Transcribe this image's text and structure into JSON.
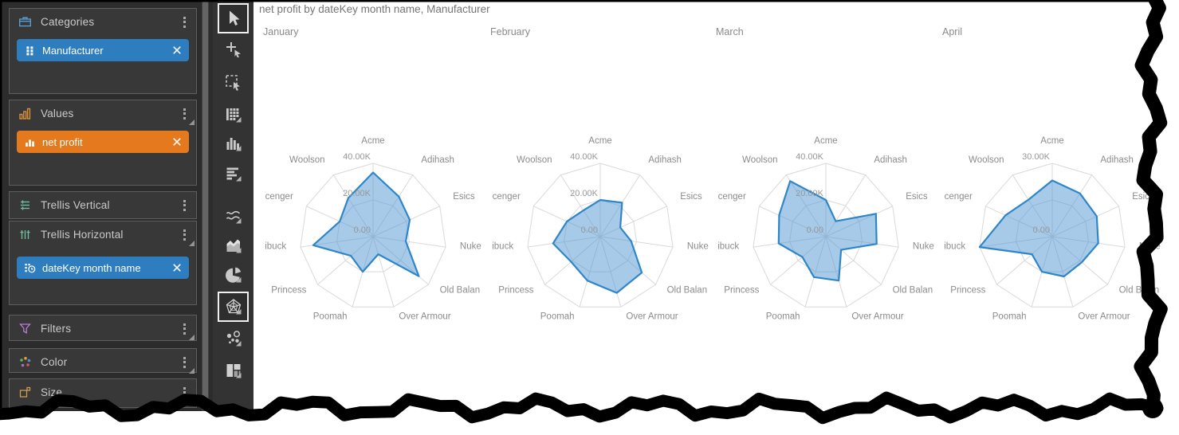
{
  "theme": {
    "accent_blue": "#2d7dbf",
    "accent_orange": "#e5791e",
    "radar_fill": "rgba(77,149,209,0.5)",
    "radar_stroke": "#2f86c7",
    "grid_line": "#d9d9d9",
    "axis_label_color": "#8c8c8c",
    "tick_label_color": "#979797",
    "title_color": "#757575",
    "month_color": "#8a8a8a"
  },
  "sidebar": {
    "panels": [
      {
        "name": "categories",
        "label": "Categories",
        "icon": "briefcase-icon",
        "chips": [
          {
            "label": "Manufacturer",
            "icon": "grid-icon",
            "color": "blue"
          }
        ]
      },
      {
        "name": "values",
        "label": "Values",
        "icon": "bar-chart-icon",
        "corner": true,
        "chips": [
          {
            "label": "net profit",
            "icon": "bars-icon",
            "color": "orange"
          }
        ]
      },
      {
        "name": "trellis-vertical",
        "label": "Trellis Vertical",
        "icon": "rows-icon",
        "chips": []
      },
      {
        "name": "trellis-horizontal",
        "label": "Trellis Horizontal",
        "icon": "columns-icon",
        "corner": true,
        "chips": [
          {
            "label": "dateKey month name",
            "icon": "clock-icon",
            "color": "blue"
          }
        ]
      },
      {
        "name": "filters",
        "label": "Filters",
        "icon": "funnel-icon",
        "corner": true,
        "chips": []
      },
      {
        "name": "color",
        "label": "Color",
        "icon": "color-dots-icon",
        "corner": true,
        "chips": []
      },
      {
        "name": "size",
        "label": "Size",
        "icon": "size-icon",
        "corner": true,
        "chips": []
      }
    ]
  },
  "toolbar": {
    "tools": [
      {
        "name": "pointer-tool",
        "selected": true
      },
      {
        "name": "add-element-tool"
      },
      {
        "name": "select-region-tool"
      },
      {
        "name": "table-visual-tool"
      },
      {
        "name": "bar-chart-visual-tool"
      },
      {
        "name": "hbar-chart-visual-tool"
      },
      {
        "name": "line-chart-visual-tool"
      },
      {
        "name": "area-chart-visual-tool"
      },
      {
        "name": "pie-chart-visual-tool"
      },
      {
        "name": "radar-chart-visual-tool",
        "selected": true
      },
      {
        "name": "scatter-chart-visual-tool"
      },
      {
        "name": "treemap-visual-tool"
      }
    ]
  },
  "main": {
    "title": "net profit by dateKey month name, Manufacturer"
  },
  "chart_data": {
    "type": "radar",
    "title": "net profit by dateKey month name, Manufacturer",
    "categories": [
      "Acme",
      "Adihash",
      "Esics",
      "Nuke",
      "Old Balan",
      "Over Armour",
      "Poomah",
      "Princess",
      "ibuck",
      "cenger",
      "Woolson"
    ],
    "trellis": [
      {
        "label": "January",
        "max": 40000,
        "ticks": [
          [
            "40.00K",
            1
          ],
          [
            "20.00K",
            0.5
          ],
          [
            "0.00",
            0
          ]
        ],
        "values": [
          35000,
          26000,
          22000,
          18000,
          33000,
          10000,
          20000,
          16000,
          33000,
          20000,
          25000
        ]
      },
      {
        "label": "February",
        "max": 40000,
        "ticks": [
          [
            "40.00K",
            1
          ],
          [
            "20.00K",
            0.5
          ],
          [
            "0.00",
            0
          ]
        ],
        "values": [
          20000,
          22000,
          12000,
          17000,
          30000,
          32000,
          25000,
          21000,
          26000,
          20000,
          17000
        ]
      },
      {
        "label": "March",
        "max": 40000,
        "ticks": [
          [
            "40.00K",
            1
          ],
          [
            "20.00K",
            0.5
          ],
          [
            "0.00",
            0
          ]
        ],
        "values": [
          20000,
          10000,
          30000,
          28000,
          11000,
          25000,
          23000,
          17000,
          26000,
          28000,
          36000
        ]
      },
      {
        "label": "April",
        "max": 30000,
        "ticks": [
          [
            "30.00K",
            1
          ],
          [
            "0.00",
            0
          ]
        ],
        "values": [
          23000,
          21000,
          20000,
          19000,
          16000,
          17000,
          15000,
          11000,
          30000,
          21000,
          18000
        ]
      }
    ],
    "grid": true,
    "legend": "none"
  }
}
